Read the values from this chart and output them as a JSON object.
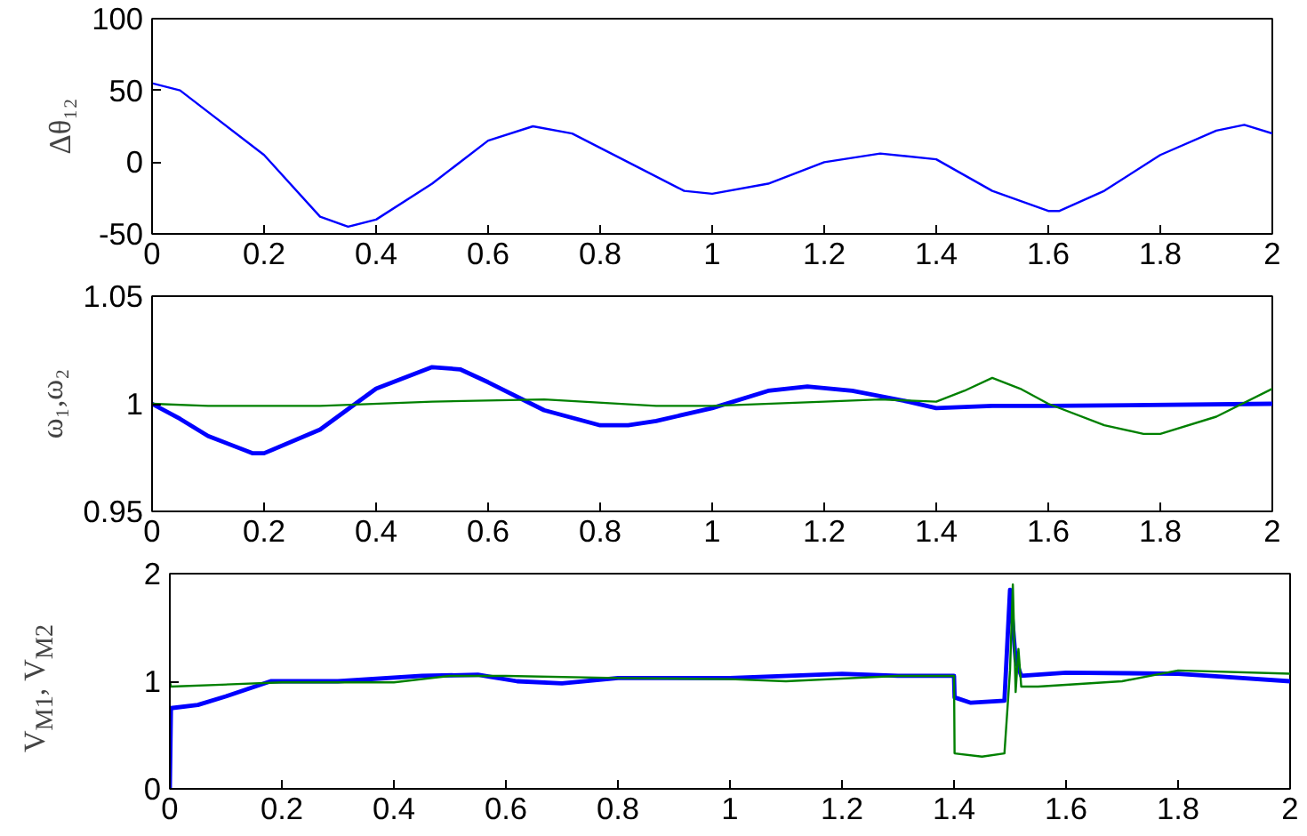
{
  "chart_data": [
    {
      "type": "line",
      "ylabel": "Δθ₁₂",
      "xlim": [
        0,
        2
      ],
      "ylim": [
        -50,
        100
      ],
      "xticks": [
        0,
        0.2,
        0.4,
        0.6,
        0.8,
        1,
        1.2,
        1.4,
        1.6,
        1.8,
        2
      ],
      "yticks": [
        -50,
        0,
        50,
        100
      ],
      "grid": false,
      "series": [
        {
          "color": "#0000ff",
          "x": [
            0,
            0.05,
            0.1,
            0.2,
            0.3,
            0.35,
            0.4,
            0.5,
            0.6,
            0.68,
            0.75,
            0.85,
            0.95,
            1.0,
            1.1,
            1.2,
            1.3,
            1.4,
            1.5,
            1.6,
            1.62,
            1.7,
            1.8,
            1.9,
            1.95,
            2
          ],
          "values": [
            55,
            50,
            35,
            5,
            -38,
            -45,
            -40,
            -15,
            15,
            25,
            20,
            0,
            -20,
            -22,
            -15,
            0,
            6,
            2,
            -20,
            -34,
            -34,
            -20,
            5,
            22,
            26,
            20
          ]
        }
      ]
    },
    {
      "type": "line",
      "ylabel": "ω₁,ω₂",
      "xlim": [
        0,
        2
      ],
      "ylim": [
        0.95,
        1.05
      ],
      "xticks": [
        0,
        0.2,
        0.4,
        0.6,
        0.8,
        1,
        1.2,
        1.4,
        1.6,
        1.8,
        2
      ],
      "yticks": [
        0.95,
        1,
        1.05
      ],
      "grid": false,
      "series": [
        {
          "color": "#0000ff",
          "x": [
            0,
            0.05,
            0.1,
            0.18,
            0.2,
            0.3,
            0.4,
            0.5,
            0.55,
            0.6,
            0.7,
            0.8,
            0.85,
            0.9,
            1.0,
            1.1,
            1.17,
            1.25,
            1.35,
            1.4,
            1.5,
            1.6,
            2
          ],
          "values": [
            1.0,
            0.993,
            0.985,
            0.977,
            0.977,
            0.988,
            1.007,
            1.017,
            1.016,
            1.01,
            0.997,
            0.99,
            0.99,
            0.992,
            0.998,
            1.006,
            1.008,
            1.006,
            1.001,
            0.998,
            0.999,
            0.999,
            1.0
          ]
        },
        {
          "color": "#008000",
          "x": [
            0,
            0.1,
            0.3,
            0.5,
            0.7,
            0.9,
            1.0,
            1.2,
            1.3,
            1.4,
            1.45,
            1.5,
            1.55,
            1.6,
            1.7,
            1.77,
            1.8,
            1.9,
            2
          ],
          "values": [
            1.0,
            0.999,
            0.999,
            1.001,
            1.002,
            0.999,
            0.999,
            1.001,
            1.002,
            1.001,
            1.006,
            1.012,
            1.007,
            1.0,
            0.99,
            0.986,
            0.986,
            0.994,
            1.007
          ]
        }
      ]
    },
    {
      "type": "line",
      "ylabel": "V$_{M1}$, V$_{M2}$",
      "xlim": [
        0,
        2
      ],
      "ylim": [
        0,
        2
      ],
      "xticks": [
        0,
        0.2,
        0.4,
        0.6,
        0.8,
        1,
        1.2,
        1.4,
        1.6,
        1.8,
        2
      ],
      "yticks": [
        0,
        1,
        2
      ],
      "grid": false,
      "series": [
        {
          "color": "#0000ff",
          "x": [
            0,
            0.002,
            0.05,
            0.1,
            0.18,
            0.3,
            0.45,
            0.55,
            0.62,
            0.7,
            0.8,
            1.0,
            1.2,
            1.3,
            1.4,
            1.401,
            1.43,
            1.49,
            1.5,
            1.51,
            1.52,
            1.6,
            1.8,
            2
          ],
          "values": [
            0,
            0.75,
            0.78,
            0.86,
            1.0,
            1.0,
            1.05,
            1.06,
            1.0,
            0.98,
            1.03,
            1.03,
            1.07,
            1.05,
            1.05,
            0.85,
            0.8,
            0.82,
            1.85,
            1.2,
            1.05,
            1.08,
            1.07,
            1.0
          ]
        },
        {
          "color": "#008000",
          "x": [
            0,
            0.002,
            0.2,
            0.4,
            0.5,
            0.6,
            0.8,
            1.0,
            1.1,
            1.3,
            1.4,
            1.401,
            1.45,
            1.49,
            1.5,
            1.505,
            1.51,
            1.515,
            1.52,
            1.55,
            1.7,
            1.8,
            2
          ],
          "values": [
            1.0,
            0.95,
            0.99,
            0.99,
            1.05,
            1.05,
            1.03,
            1.02,
            1.0,
            1.05,
            1.05,
            0.33,
            0.3,
            0.33,
            1.1,
            1.9,
            0.9,
            1.3,
            0.95,
            0.95,
            1.0,
            1.1,
            1.07
          ]
        }
      ]
    }
  ]
}
